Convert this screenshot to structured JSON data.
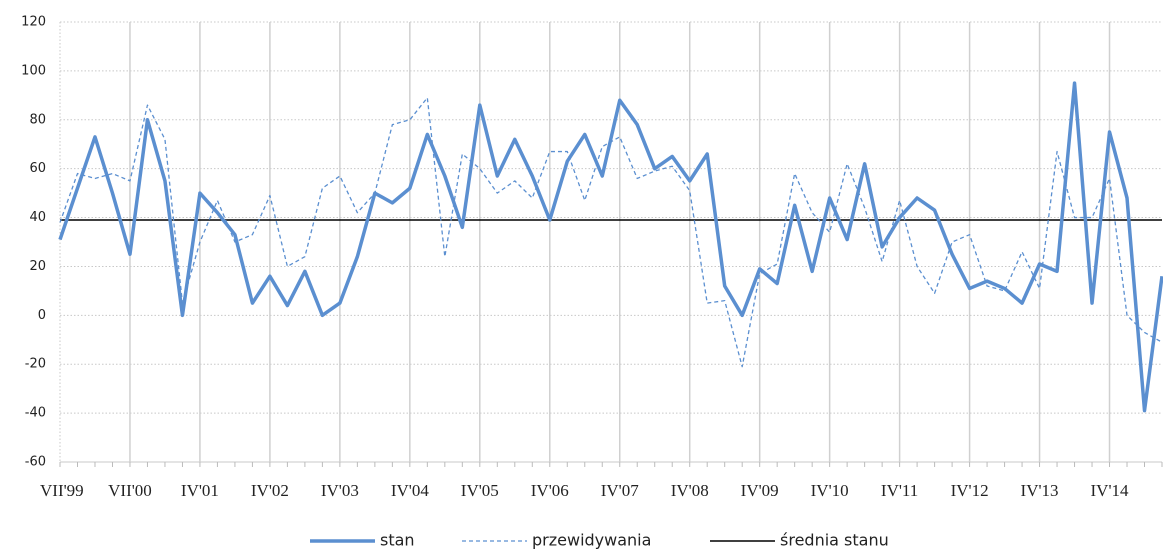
{
  "chart_data": {
    "type": "line",
    "categories": [
      "VII'99",
      null,
      null,
      null,
      "VII'00",
      null,
      null,
      null,
      "IV'01",
      null,
      null,
      null,
      "IV'02",
      null,
      null,
      null,
      "IV'03",
      null,
      null,
      null,
      "IV'04",
      null,
      null,
      null,
      "IV'05",
      null,
      null,
      null,
      "IV'06",
      null,
      null,
      null,
      "IV'07",
      null,
      null,
      null,
      "IV'08",
      null,
      null,
      null,
      "IV'09",
      null,
      null,
      null,
      "IV'10",
      null,
      null,
      null,
      "IV'11",
      null,
      null,
      null,
      "IV'12",
      null,
      null,
      null,
      "IV'13",
      null,
      null,
      null,
      "IV'14",
      null,
      null,
      null
    ],
    "series": [
      {
        "name": "stan",
        "color": "#5b8fd0",
        "width": 3.5,
        "dashed": false,
        "values": [
          31,
          52,
          73,
          50,
          25,
          80,
          55,
          0,
          50,
          42,
          33,
          5,
          16,
          4,
          18,
          0,
          5,
          24,
          50,
          46,
          52,
          74,
          57,
          36,
          86,
          57,
          72,
          57,
          39,
          63,
          74,
          57,
          88,
          78,
          60,
          65,
          55,
          66,
          12,
          0,
          19,
          13,
          45,
          18,
          48,
          31,
          62,
          28,
          40,
          48,
          43,
          25,
          11,
          14,
          11,
          5,
          21,
          18,
          95,
          5,
          75,
          48,
          -39,
          16
        ]
      },
      {
        "name": "przewidywania",
        "color": "#5b8fd0",
        "width": 1.3,
        "dashed": true,
        "values": [
          38,
          58,
          56,
          58,
          55,
          86,
          72,
          5,
          30,
          47,
          30,
          33,
          49,
          20,
          24,
          52,
          57,
          42,
          50,
          78,
          80,
          89,
          24,
          66,
          60,
          50,
          55,
          48,
          67,
          67,
          47,
          69,
          73,
          56,
          59,
          61,
          51,
          5,
          6,
          -21,
          17,
          21,
          58,
          42,
          34,
          62,
          44,
          22,
          47,
          20,
          9,
          30,
          33,
          12,
          10,
          26,
          11,
          67,
          40,
          40,
          56,
          0,
          -7,
          -11
        ]
      }
    ],
    "reference_lines": [
      {
        "name": "średnia stanu",
        "value": 39,
        "color": "#000000"
      }
    ],
    "ylim": [
      -60,
      120
    ],
    "yticks": [
      -60,
      -40,
      -20,
      0,
      20,
      40,
      60,
      80,
      100,
      120
    ],
    "grid": true,
    "legend": "bottom"
  }
}
